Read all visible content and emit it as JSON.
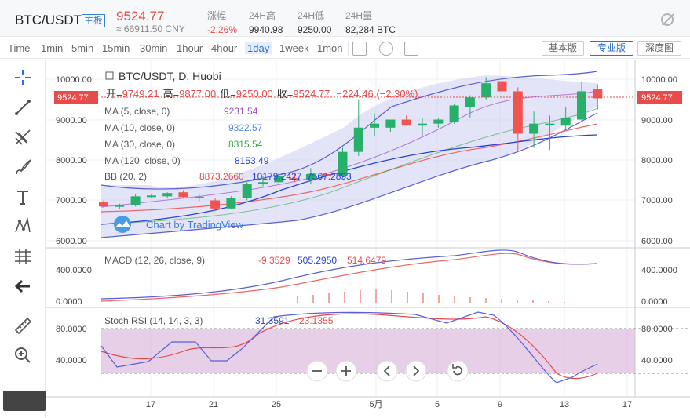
{
  "header": {
    "pair": "BTC/USDT",
    "badge": "主板",
    "price": "9524.77",
    "cny": "≈ 66911.50 CNY",
    "stats": [
      {
        "label": "涨幅",
        "value": "-2.26%",
        "red": true
      },
      {
        "label": "24H高",
        "value": "9940.98"
      },
      {
        "label": "24H低",
        "value": "9250.00"
      },
      {
        "label": "24H量",
        "value": "82,284 BTC"
      }
    ]
  },
  "timeframes": [
    "Time",
    "1min",
    "5min",
    "15min",
    "30min",
    "1hour",
    "4hour",
    "1day",
    "1week",
    "1mon"
  ],
  "active_timeframe": "1day",
  "view_buttons": [
    "基本版",
    "专业版",
    "深度图"
  ],
  "active_view": "专业版",
  "tools": [
    "crosshair-icon",
    "trendline-icon",
    "pitchfork-icon",
    "brush-icon",
    "text-icon",
    "pattern-icon",
    "measure-icon",
    "back-arrow-icon",
    "ruler-icon",
    "zoom-in-icon"
  ],
  "legend": {
    "title": "BTC/USDT, D, Huobi",
    "ohlc": {
      "o_label": "开=",
      "o": "9749.21",
      "h_label": "高=",
      "h": "9877.00",
      "l_label": "低=",
      "l": "9250.00",
      "c_label": "收=",
      "c": "9524.77",
      "chg": "−224.46 (−2.30%)"
    },
    "ma": [
      {
        "label": "MA (5, close, 0)",
        "value": "9231.54",
        "color": "#9c4fc9"
      },
      {
        "label": "MA (10, close, 0)",
        "value": "9322.57",
        "color": "#5d8ed9"
      },
      {
        "label": "MA (30, close, 0)",
        "value": "8315.54",
        "color": "#3aa64b"
      },
      {
        "label": "MA (120, close, 0)",
        "value": "8153.49",
        "color": "#2a44d8"
      }
    ],
    "bb": {
      "label": "BB (20, 2)",
      "v1": "8873.2660",
      "v2": "10179.2427",
      "v3": "7567.2893"
    },
    "macd": {
      "label": "MACD (12, 26, close, 9)",
      "v1": "-9.3529",
      "v2": "505.2950",
      "v3": "514.6479"
    },
    "stoch": {
      "label": "Stoch RSI (14, 14, 3, 3)",
      "v1": "31.3591",
      "v2": "23.1355"
    }
  },
  "price_axis": [
    "10000.00",
    "9000.00",
    "8000.00",
    "7000.00",
    "6000.00"
  ],
  "macd_axis": [
    "400.0000",
    "0.0000"
  ],
  "stoch_axis": [
    "80.0000",
    "40.0000"
  ],
  "current_price_tag": "9524.77",
  "watermark": "Chart by TradingView",
  "x_labels": [
    "17",
    "21",
    "25",
    "5月",
    "5",
    "9",
    "13",
    "17"
  ],
  "chart_data": {
    "type": "candlestick",
    "title": "BTC/USDT, D, Huobi",
    "candles": [
      {
        "o": 6950,
        "h": 7000,
        "l": 6820,
        "c": 6850
      },
      {
        "o": 6850,
        "h": 6920,
        "l": 6780,
        "c": 6880
      },
      {
        "o": 6880,
        "h": 7150,
        "l": 6850,
        "c": 7100
      },
      {
        "o": 7100,
        "h": 7150,
        "l": 7050,
        "c": 7120
      },
      {
        "o": 7100,
        "h": 7200,
        "l": 7050,
        "c": 7180
      },
      {
        "o": 7200,
        "h": 7250,
        "l": 7050,
        "c": 7080
      },
      {
        "o": 7080,
        "h": 7150,
        "l": 6980,
        "c": 7090
      },
      {
        "o": 7000,
        "h": 7050,
        "l": 6780,
        "c": 6800
      },
      {
        "o": 6800,
        "h": 7100,
        "l": 6780,
        "c": 7050
      },
      {
        "o": 7050,
        "h": 7450,
        "l": 7000,
        "c": 7400
      },
      {
        "o": 7400,
        "h": 7600,
        "l": 7350,
        "c": 7450
      },
      {
        "o": 7450,
        "h": 7700,
        "l": 7380,
        "c": 7600
      },
      {
        "o": 7550,
        "h": 7650,
        "l": 7450,
        "c": 7500
      },
      {
        "o": 7500,
        "h": 7800,
        "l": 7400,
        "c": 7650
      },
      {
        "o": 7650,
        "h": 7700,
        "l": 7550,
        "c": 7600
      },
      {
        "o": 7600,
        "h": 8300,
        "l": 7550,
        "c": 8200
      },
      {
        "o": 8200,
        "h": 9500,
        "l": 8100,
        "c": 8800
      },
      {
        "o": 8800,
        "h": 9150,
        "l": 8600,
        "c": 8900
      },
      {
        "o": 8800,
        "h": 9000,
        "l": 8700,
        "c": 9000
      },
      {
        "o": 9000,
        "h": 9100,
        "l": 8850,
        "c": 8850
      },
      {
        "o": 8850,
        "h": 9050,
        "l": 8600,
        "c": 8900
      },
      {
        "o": 8900,
        "h": 9050,
        "l": 8800,
        "c": 9000
      },
      {
        "o": 8950,
        "h": 9400,
        "l": 8900,
        "c": 9350
      },
      {
        "o": 9300,
        "h": 9600,
        "l": 9050,
        "c": 9550
      },
      {
        "o": 9550,
        "h": 10050,
        "l": 9500,
        "c": 9900
      },
      {
        "o": 9950,
        "h": 10050,
        "l": 9650,
        "c": 9700
      },
      {
        "o": 9700,
        "h": 9800,
        "l": 8200,
        "c": 8650
      },
      {
        "o": 8650,
        "h": 9200,
        "l": 8300,
        "c": 8900
      },
      {
        "o": 8900,
        "h": 9100,
        "l": 8250,
        "c": 8900
      },
      {
        "o": 8850,
        "h": 9300,
        "l": 8750,
        "c": 9050
      },
      {
        "o": 9000,
        "h": 9950,
        "l": 8950,
        "c": 9700
      },
      {
        "o": 9750,
        "h": 9877,
        "l": 9250,
        "c": 9525
      }
    ],
    "ylim": [
      5900,
      10250
    ]
  }
}
